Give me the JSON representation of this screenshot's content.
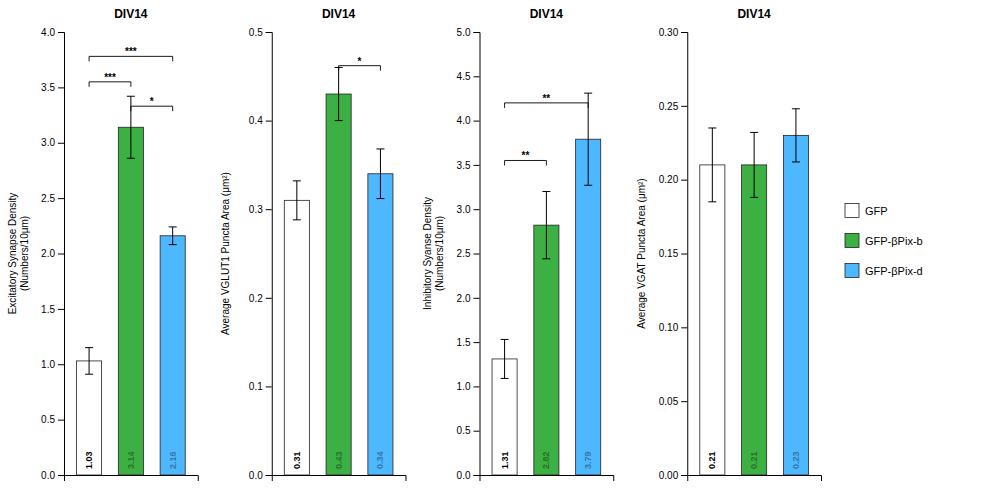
{
  "chart_data": [
    {
      "type": "bar",
      "title": "DIV14",
      "ylabel": "Excitatory Synapse Density\n(Numbers/10μm)",
      "categories": [
        "GFP",
        "GFP-βPix-b",
        "GFP-βPix-d"
      ],
      "values": [
        1.03,
        3.14,
        2.16
      ],
      "errors": [
        0.12,
        0.28,
        0.08
      ],
      "colors": [
        "white",
        "#3cb043",
        "#4db8ff"
      ],
      "ylim": [
        0,
        4
      ],
      "yticks": [
        {
          "value": 0,
          "label": "0.0"
        },
        0.5,
        {
          "value": 1,
          "label": "1.0"
        },
        1.5,
        {
          "value": 2,
          "label": "2.0"
        },
        2.5,
        {
          "value": 3,
          "label": "3.0"
        },
        3.5,
        {
          "value": 4,
          "label": "4.0"
        }
      ],
      "data_labels": true,
      "grid": false,
      "tick_labels": "y",
      "legend": "right",
      "annotations": [
        {
          "text": "***",
          "from": "GFP",
          "to": "GFP-βPix-b",
          "y": 3.55
        },
        {
          "text": "***",
          "from": "GFP",
          "to": "GFP-βPix-d",
          "y": 3.78
        },
        {
          "text": "*",
          "from": "GFP-βPix-b",
          "to": "GFP-βPix-d",
          "y": 3.33
        }
      ]
    },
    {
      "type": "bar",
      "title": "DIV14",
      "ylabel": "Average VGLUT1 Puncta Area (μm²)",
      "categories": [
        "GFP",
        "GFP-βPix-b",
        "GFP-βPix-d"
      ],
      "values": [
        0.31,
        0.43,
        0.34
      ],
      "errors": [
        0.022,
        0.03,
        0.028
      ],
      "colors": [
        "white",
        "#3cb043",
        "#4db8ff"
      ],
      "ylim": [
        0,
        0.5
      ],
      "yticks": [
        {
          "value": 0,
          "label": "0.0"
        },
        0.1,
        0.2,
        0.3,
        0.4,
        0.5
      ],
      "data_labels": true,
      "grid": false,
      "tick_labels": "y",
      "annotations": [
        {
          "text": "*",
          "from": "GFP-βPix-b",
          "to": "GFP-βPix-d",
          "y": 0.462
        }
      ]
    },
    {
      "type": "bar",
      "title": "DIV14",
      "ylabel": "Inhibitory Syanse Density\n(Numbers/10μm)",
      "categories": [
        "GFP",
        "GFP-βPix-b",
        "GFP-βPix-d"
      ],
      "values": [
        1.31,
        2.82,
        3.79
      ],
      "errors": [
        0.22,
        0.38,
        0.52
      ],
      "colors": [
        "white",
        "#3cb043",
        "#4db8ff"
      ],
      "ylim": [
        0,
        5
      ],
      "yticks": [
        {
          "value": 0,
          "label": "0.0"
        },
        0.5,
        {
          "value": 1,
          "label": "1.0"
        },
        1.5,
        {
          "value": 2,
          "label": "2.0"
        },
        2.5,
        {
          "value": 3,
          "label": "3.0"
        },
        3.5,
        {
          "value": 4,
          "label": "4.0"
        },
        4.5,
        {
          "value": 5,
          "label": "5.0"
        }
      ],
      "data_labels": true,
      "grid": false,
      "tick_labels": "y",
      "annotations": [
        {
          "text": "**",
          "from": "GFP",
          "to": "GFP-βPix-b",
          "y": 3.55
        },
        {
          "text": "**",
          "from": "GFP",
          "to": "GFP-βPix-d",
          "y": 4.2
        }
      ]
    },
    {
      "type": "bar",
      "title": "DIV14",
      "ylabel": "Average VGAT Puncta Area (μm²)",
      "categories": [
        "GFP",
        "GFP-βPix-b",
        "GFP-βPix-d"
      ],
      "values": [
        0.21,
        0.21,
        0.23
      ],
      "errors": [
        0.025,
        0.022,
        0.018
      ],
      "colors": [
        "white",
        "#3cb043",
        "#4db8ff"
      ],
      "ylim": [
        0,
        0.3
      ],
      "yticks": [
        {
          "value": 0,
          "label": "0.00"
        },
        0.05,
        {
          "value": 0.1,
          "label": "0.10"
        },
        0.15,
        {
          "value": 0.2,
          "label": "0.20"
        },
        0.25,
        {
          "value": 0.3,
          "label": "0.30"
        }
      ],
      "data_labels": true,
      "grid": false,
      "tick_labels": "y"
    }
  ]
}
